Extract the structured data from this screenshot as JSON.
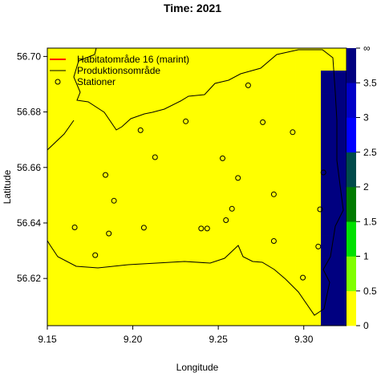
{
  "chart_data": {
    "type": "heatmap",
    "title": "Time: 2021",
    "xlabel": "Longitude",
    "ylabel": "Latitude",
    "xlim": [
      9.15,
      9.325
    ],
    "ylim": [
      56.603,
      56.703
    ],
    "x_ticks": [
      9.15,
      9.2,
      9.25,
      9.3
    ],
    "x_tick_labels": [
      "9.15",
      "9.20",
      "9.25",
      "9.30"
    ],
    "y_ticks": [
      56.62,
      56.64,
      56.66,
      56.68,
      56.7
    ],
    "y_tick_labels": [
      "56.62",
      "56.64",
      "56.66",
      "56.68",
      "56.70"
    ],
    "legend": {
      "position": "top-left",
      "entries": [
        {
          "label": "Habitatområde 16 (marint)",
          "style": "line",
          "color": "#ff0000"
        },
        {
          "label": "Produktionsområde",
          "style": "line",
          "color": "#000000"
        },
        {
          "label": "Stationer",
          "style": "circle",
          "color": "#000000"
        }
      ]
    },
    "colorbar": {
      "tick_labels": [
        "0",
        "0.5",
        "1",
        "1.5",
        "2",
        "2.5",
        "3",
        "3.5",
        "∞"
      ],
      "tick_values": [
        0,
        0.5,
        1,
        1.5,
        2,
        2.5,
        3,
        3.5
      ],
      "bins": [
        {
          "from": 0,
          "to": 0.5,
          "color": "#ffff00"
        },
        {
          "from": 0.5,
          "to": 1,
          "color": "#80ff00"
        },
        {
          "from": 1,
          "to": 1.5,
          "color": "#00e000"
        },
        {
          "from": 1.5,
          "to": 2,
          "color": "#007a00"
        },
        {
          "from": 2,
          "to": 2.5,
          "color": "#004a4a"
        },
        {
          "from": 2.5,
          "to": 3,
          "color": "#0000ff"
        },
        {
          "from": 3,
          "to": 3.5,
          "color": "#0000c8"
        },
        {
          "from": 3.5,
          "to": 4,
          "color": "#000080"
        }
      ]
    },
    "grid": {
      "lon0": 9.15,
      "lat_top": 56.703,
      "dlon": 0.005,
      "dlat": 0.0027,
      "legend_codes": {
        ".": "none",
        "Y": "0-0.5",
        "L": "0.5-1",
        "G": "1-1.5",
        "D": "1.5-2",
        "T": "2-2.5",
        "B": "2.5-3",
        "M": "3-3.5",
        "N": "3.5-4"
      },
      "rows": [
        "YYYYYYYYYYYYYYYYYYYYYYYYYYYYYYYYYYY",
        "YYYYYYYYYYYYYYYYYYYYYYYYYYYYYYYYYYY",
        "YYYYYYYYYYYYYYYYYYYYYYYYYYYYYYYYYYY",
        "YYYYYYYYYYYYYYYYYYYYYYYYYYYYYYYYNNN",
        "YYYYYYYYYYYYYYYYYYYYYYYYYYYYYYYYNNN",
        "YYYYYYYYYYYYYYYYYYYYYYYYYYYYYYYYNNN",
        "YYYYYYYYYYYYYYYYYYYYYYYYYYYYYYYYNNN",
        "YYYYYYYYYYYYYYYYYYYYYYYYYYYYYYYYNNN",
        "YYYYYYYYYYYYYYYYYYYYYYYYYYYYYYYYNNN",
        "YYYYYYYYYYYYYYYYYYYYYYYYYYYYYYYYNNN",
        "YYYYYYYYYYYYYYYYYYYYYYYYYYYYYYYYNNN",
        "YYYYYYYYYYYYYYYYYYYYYYYYYYYYYYYYNNN",
        "YYYYYYYYYYYYYYYYYYYYYYYYYYYYYYYYNNN",
        "YYYYYYYYYYYYYYYYYYYYYYYYYYYYYYYYNNN",
        "YYYYYYYYYYYYYYYYYYYYYYYYYYYYYYYYNNN",
        "YYYYYYYYYYYYYYYYYYYYYYYYYYYYYYYYNNN",
        "YYYYYYYYYYYYYYYYYYYYYYYYYYYYYYYYNNN",
        "YYYYYYYYYYYYYYYYYYYYYYYYYYYYYYYYNNN",
        "YYYYYYYYYYYYYYYYYYYYYYYYYYYYYYYYNNN",
        "YYYYYYYYYYYYYYYYYYYYYYYYYYYYYYYYNNN",
        "YYYYYYYYYYYYYYYYYYYYYYYYYYYYYYYYNNN",
        "YYYYYYYYYYYYYYYYYYYYYYYYYYYYYYYYNNN",
        "YYYYYYYYYYYYYYYYYYYYYYYYYYYYYYYYNNN",
        "YYYYYYYYYYYYYYYYYYYYYYYYYYYYYYYYNNN",
        "YYYYYYYYYYYYYYYYYYYYYYYYYYYYYYYYNNN",
        "YYYYYYYYYYYYYYYYYYYYYYYYYYYYYYYYNNN",
        "YYYYYYYYYYYYYYYYYYYYYYYYYYYYYYYYNNN",
        "YYYYYYYYYYYYYYYYYYYYYYYYYYYYYYYYNNN",
        "YYYYYYYYYYYYYYYYYYYYYYYYYYYYYYYYNNN",
        "YYYYYYYYYYYYYYYYYYYYYYYYYYYYYYYYNNN",
        "YYYYYYYYYYYYYYYYYYYYYYYYYYYYYYYYNNN",
        "YYYYYYYYYYYYYYYYYYYYYYYYYYYYYYYYNNN",
        "YYYYYYYYYYYYYYYYYYYYYYYYYYYYYYYYNNN",
        "YYYYYYYYYYYYYYYYYYYYYYYYYYYYYYYYNNN",
        "YYYYYYYYYYYYYYYYYYYYYYYYYYYYYYYYNNN",
        "YYYYYYYYYYYYYYYYYYYYYYYYYYYYYYYYNNN",
        "YYYYYYYYYYYYYYYYYYYYYYYYYYYYYYYYNNN"
      ]
    },
    "stations": [
      {
        "lon": 9.2045,
        "lat": 56.6734
      },
      {
        "lon": 9.231,
        "lat": 56.6766
      },
      {
        "lon": 9.2675,
        "lat": 56.6896
      },
      {
        "lon": 9.276,
        "lat": 56.6763
      },
      {
        "lon": 9.2935,
        "lat": 56.6727
      },
      {
        "lon": 9.213,
        "lat": 56.6637
      },
      {
        "lon": 9.2525,
        "lat": 56.6633
      },
      {
        "lon": 9.184,
        "lat": 56.6573
      },
      {
        "lon": 9.2615,
        "lat": 56.6562
      },
      {
        "lon": 9.3115,
        "lat": 56.6582
      },
      {
        "lon": 9.189,
        "lat": 56.648
      },
      {
        "lon": 9.2825,
        "lat": 56.6503
      },
      {
        "lon": 9.3095,
        "lat": 56.6449
      },
      {
        "lon": 9.258,
        "lat": 56.6451
      },
      {
        "lon": 9.2545,
        "lat": 56.641
      },
      {
        "lon": 9.166,
        "lat": 56.6384
      },
      {
        "lon": 9.2065,
        "lat": 56.6383
      },
      {
        "lon": 9.24,
        "lat": 56.638
      },
      {
        "lon": 9.2435,
        "lat": 56.638
      },
      {
        "lon": 9.186,
        "lat": 56.6362
      },
      {
        "lon": 9.2825,
        "lat": 56.6335
      },
      {
        "lon": 9.3085,
        "lat": 56.6315
      },
      {
        "lon": 9.178,
        "lat": 56.6284
      },
      {
        "lon": 9.2995,
        "lat": 56.6203
      }
    ]
  }
}
